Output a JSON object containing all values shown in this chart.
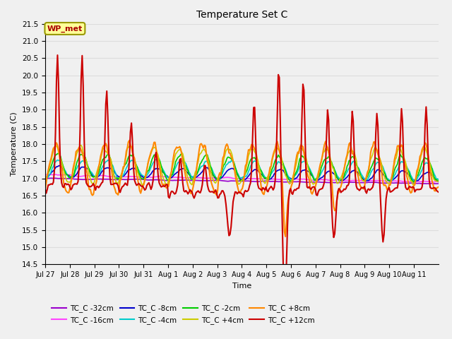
{
  "title": "Temperature Set C",
  "xlabel": "Time",
  "ylabel": "Temperature (C)",
  "ylim": [
    14.5,
    21.5
  ],
  "annotation_text": "WP_met",
  "annotation_box_color": "#FFFF99",
  "annotation_text_color": "#AA0000",
  "annotation_edge_color": "#999900",
  "series": [
    {
      "label": "TC_C -32cm",
      "color": "#9900CC"
    },
    {
      "label": "TC_C -16cm",
      "color": "#FF44FF"
    },
    {
      "label": "TC_C -8cm",
      "color": "#0000CC"
    },
    {
      "label": "TC_C -4cm",
      "color": "#00CCCC"
    },
    {
      "label": "TC_C -2cm",
      "color": "#00CC00"
    },
    {
      "label": "TC_C +4cm",
      "color": "#CCCC00"
    },
    {
      "label": "TC_C +8cm",
      "color": "#FF8800"
    },
    {
      "label": "TC_C +12cm",
      "color": "#CC0000"
    }
  ],
  "grid_color": "#DDDDDD",
  "plot_bg_color": "#F0F0F0",
  "yticks": [
    14.5,
    15.0,
    15.5,
    16.0,
    16.5,
    17.0,
    17.5,
    18.0,
    18.5,
    19.0,
    19.5,
    20.0,
    20.5,
    21.0,
    21.5
  ],
  "tick_labels": [
    "Jul 27",
    "Jul 28",
    "Jul 29",
    "Jul 30",
    "Jul 31",
    "Aug 1",
    "Aug 2",
    "Aug 3",
    "Aug 4",
    "Aug 5",
    "Aug 6",
    "Aug 7",
    "Aug 8",
    "Aug 9",
    "Aug 10",
    "Aug 11"
  ]
}
